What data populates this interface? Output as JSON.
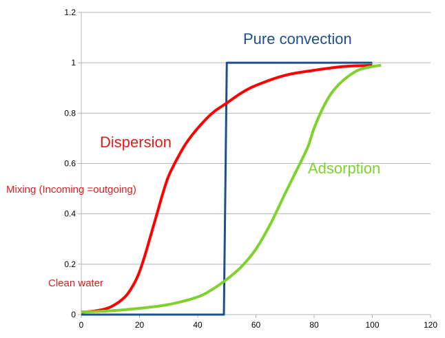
{
  "chart_data": {
    "type": "line",
    "title": "",
    "xlabel": "",
    "ylabel": "",
    "xlim": [
      0,
      120
    ],
    "ylim": [
      0,
      1.2
    ],
    "x_ticks": [
      "0",
      "20",
      "40",
      "60",
      "80",
      "100",
      "120"
    ],
    "y_ticks": [
      "0",
      "0.2",
      "0.4",
      "0.6",
      "0.8",
      "1",
      "1.2"
    ],
    "grid": "horizontal",
    "legend": "none",
    "series": [
      {
        "name": "Pure convection",
        "color": "#1f4e8c",
        "points": [
          [
            0,
            0
          ],
          [
            49,
            0
          ],
          [
            50,
            1
          ],
          [
            100,
            1
          ]
        ]
      },
      {
        "name": "Dispersion",
        "color": "#ff0000",
        "points": [
          [
            0,
            0.01
          ],
          [
            5,
            0.015
          ],
          [
            10,
            0.03
          ],
          [
            15,
            0.07
          ],
          [
            18,
            0.12
          ],
          [
            20,
            0.17
          ],
          [
            22,
            0.24
          ],
          [
            24,
            0.32
          ],
          [
            26,
            0.4
          ],
          [
            28,
            0.48
          ],
          [
            30,
            0.55
          ],
          [
            33,
            0.62
          ],
          [
            36,
            0.68
          ],
          [
            40,
            0.74
          ],
          [
            45,
            0.8
          ],
          [
            50,
            0.84
          ],
          [
            55,
            0.88
          ],
          [
            60,
            0.91
          ],
          [
            70,
            0.95
          ],
          [
            80,
            0.97
          ],
          [
            90,
            0.985
          ],
          [
            100,
            0.99
          ]
        ]
      },
      {
        "name": "Adsorption",
        "color": "#7fd12b",
        "points": [
          [
            0,
            0.01
          ],
          [
            10,
            0.015
          ],
          [
            20,
            0.025
          ],
          [
            30,
            0.04
          ],
          [
            40,
            0.07
          ],
          [
            45,
            0.1
          ],
          [
            50,
            0.14
          ],
          [
            55,
            0.19
          ],
          [
            60,
            0.26
          ],
          [
            65,
            0.36
          ],
          [
            70,
            0.48
          ],
          [
            73,
            0.55
          ],
          [
            76,
            0.62
          ],
          [
            78,
            0.67
          ],
          [
            80,
            0.74
          ],
          [
            83,
            0.82
          ],
          [
            86,
            0.88
          ],
          [
            90,
            0.93
          ],
          [
            95,
            0.97
          ],
          [
            100,
            0.985
          ],
          [
            103,
            0.99
          ]
        ]
      }
    ],
    "annotations": [
      {
        "text": "Pure convection",
        "color": "#1f4e8c"
      },
      {
        "text": "Dispersion",
        "color": "#e31a1c"
      },
      {
        "text": "Adsorption",
        "color": "#7fd12b"
      },
      {
        "text": "Mixing (Incoming =outgoing)",
        "color": "#e31a1c"
      },
      {
        "text": "Clean water",
        "color": "#e31a1c"
      }
    ]
  }
}
